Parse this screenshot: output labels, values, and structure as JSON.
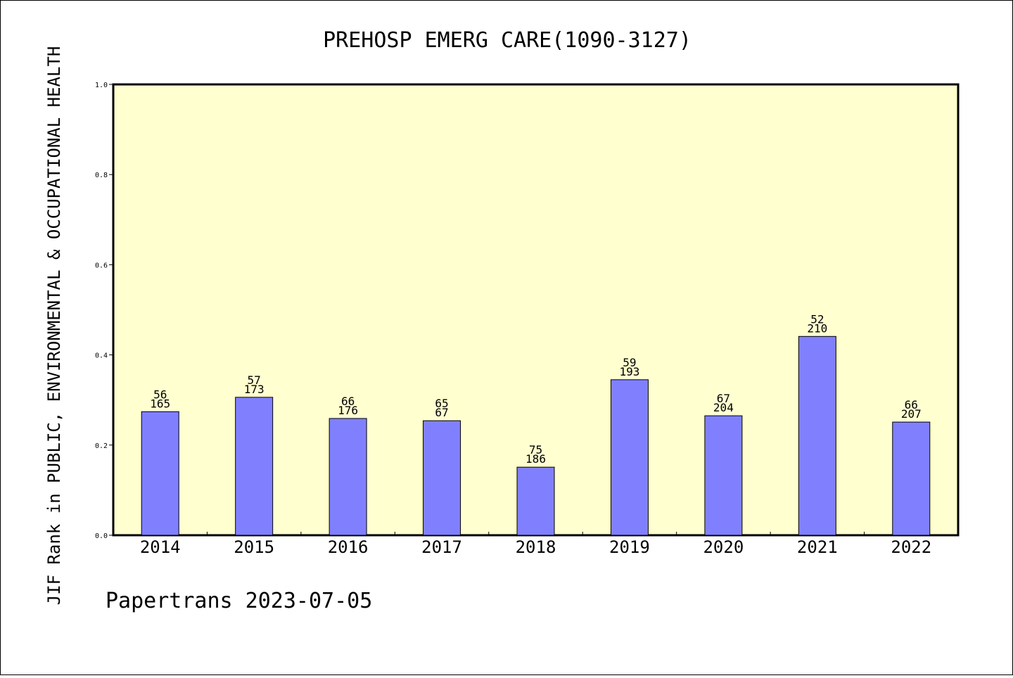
{
  "chart_data": {
    "type": "bar",
    "title": "PREHOSP EMERG CARE(1090-3127)",
    "ylabel": "JIF Rank in PUBLIC, ENVIRONMENTAL & OCCUPATIONAL HEALTH",
    "xlabel": "",
    "ylim": [
      0,
      1.0
    ],
    "yticks": [
      "0.0",
      "0.2",
      "0.4",
      "0.6",
      "0.8",
      "1.0"
    ],
    "categories": [
      "2014",
      "2015",
      "2016",
      "2017",
      "2018",
      "2019",
      "2020",
      "2021",
      "2022"
    ],
    "values": [
      0.274,
      0.306,
      0.259,
      0.254,
      0.151,
      0.345,
      0.265,
      0.441,
      0.251
    ],
    "ranks": [
      "56",
      "57",
      "66",
      "65",
      "75",
      "59",
      "67",
      "52",
      "66"
    ],
    "totals": [
      "165",
      "173",
      "176",
      "67",
      "186",
      "193",
      "204",
      "210",
      "207"
    ],
    "grid": false,
    "legend": "none"
  },
  "footer": "Papertrans 2023-07-05",
  "colors": {
    "plot_background": "#ffffd0",
    "bar_fill": "#8080ff",
    "bar_stroke": "#000000",
    "axis": "#000000"
  }
}
